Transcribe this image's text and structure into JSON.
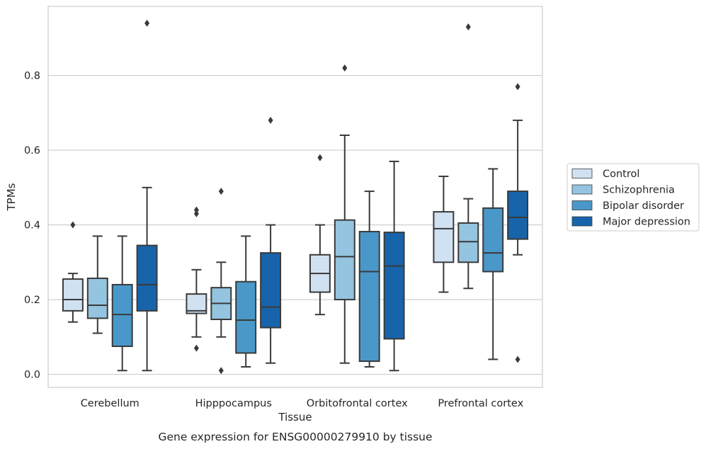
{
  "caption": "Gene expression for ENSG00000279910 by tissue",
  "chart_data": {
    "type": "box",
    "title": "",
    "xlabel": "Tissue",
    "ylabel": "TPMs",
    "ylim": [
      -0.035,
      0.985
    ],
    "yticks": [
      "0.0",
      "0.2",
      "0.4",
      "0.6",
      "0.8"
    ],
    "grid": "horizontal",
    "legend_position": "right",
    "categories": [
      "Cerebellum",
      "Hipppocampus",
      "Orbitofrontal cortex",
      "Prefrontal cortex"
    ],
    "series": [
      {
        "name": "Control",
        "color": "#d0e1f2",
        "boxes": [
          {
            "whislo": 0.14,
            "q1": 0.17,
            "med": 0.2,
            "q3": 0.255,
            "whishi": 0.27,
            "fliers": [
              0.4
            ]
          },
          {
            "whislo": 0.1,
            "q1": 0.163,
            "med": 0.17,
            "q3": 0.215,
            "whishi": 0.28,
            "fliers": [
              0.44,
              0.43,
              0.07
            ]
          },
          {
            "whislo": 0.16,
            "q1": 0.22,
            "med": 0.27,
            "q3": 0.32,
            "whishi": 0.4,
            "fliers": [
              0.58
            ]
          },
          {
            "whislo": 0.22,
            "q1": 0.3,
            "med": 0.39,
            "q3": 0.435,
            "whishi": 0.53,
            "fliers": []
          }
        ]
      },
      {
        "name": "Schizophrenia",
        "color": "#94c4df",
        "boxes": [
          {
            "whislo": 0.11,
            "q1": 0.15,
            "med": 0.185,
            "q3": 0.257,
            "whishi": 0.37,
            "fliers": []
          },
          {
            "whislo": 0.1,
            "q1": 0.147,
            "med": 0.19,
            "q3": 0.232,
            "whishi": 0.3,
            "fliers": [
              0.49,
              0.01
            ]
          },
          {
            "whislo": 0.03,
            "q1": 0.2,
            "med": 0.315,
            "q3": 0.413,
            "whishi": 0.64,
            "fliers": [
              0.82
            ]
          },
          {
            "whislo": 0.23,
            "q1": 0.3,
            "med": 0.355,
            "q3": 0.405,
            "whishi": 0.47,
            "fliers": [
              0.93
            ]
          }
        ]
      },
      {
        "name": "Bipolar disorder",
        "color": "#4a98c9",
        "boxes": [
          {
            "whislo": 0.01,
            "q1": 0.075,
            "med": 0.16,
            "q3": 0.24,
            "whishi": 0.37,
            "fliers": []
          },
          {
            "whislo": 0.02,
            "q1": 0.057,
            "med": 0.145,
            "q3": 0.248,
            "whishi": 0.37,
            "fliers": []
          },
          {
            "whislo": 0.02,
            "q1": 0.035,
            "med": 0.275,
            "q3": 0.382,
            "whishi": 0.49,
            "fliers": []
          },
          {
            "whislo": 0.04,
            "q1": 0.275,
            "med": 0.325,
            "q3": 0.445,
            "whishi": 0.55,
            "fliers": []
          }
        ]
      },
      {
        "name": "Major depression",
        "color": "#1764ab",
        "boxes": [
          {
            "whislo": 0.01,
            "q1": 0.17,
            "med": 0.24,
            "q3": 0.345,
            "whishi": 0.5,
            "fliers": [
              0.94
            ]
          },
          {
            "whislo": 0.03,
            "q1": 0.125,
            "med": 0.18,
            "q3": 0.325,
            "whishi": 0.4,
            "fliers": [
              0.68
            ]
          },
          {
            "whislo": 0.01,
            "q1": 0.095,
            "med": 0.29,
            "q3": 0.38,
            "whishi": 0.57,
            "fliers": []
          },
          {
            "whislo": 0.32,
            "q1": 0.362,
            "med": 0.42,
            "q3": 0.49,
            "whishi": 0.68,
            "fliers": [
              0.77,
              0.04
            ]
          }
        ]
      }
    ]
  }
}
